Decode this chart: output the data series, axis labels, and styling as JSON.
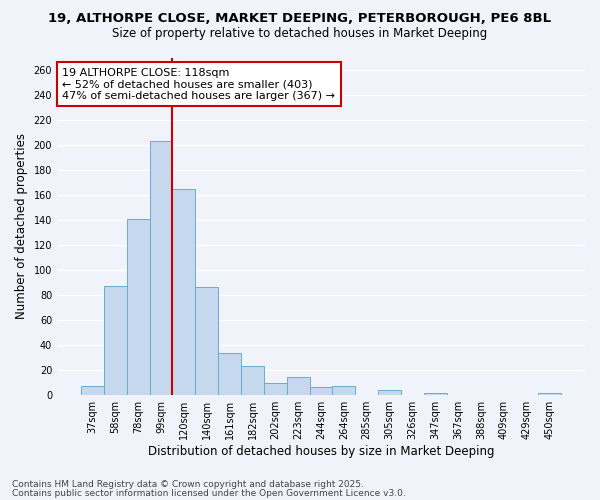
{
  "title_line1": "19, ALTHORPE CLOSE, MARKET DEEPING, PETERBOROUGH, PE6 8BL",
  "title_line2": "Size of property relative to detached houses in Market Deeping",
  "xlabel": "Distribution of detached houses by size in Market Deeping",
  "ylabel": "Number of detached properties",
  "categories": [
    "37sqm",
    "58sqm",
    "78sqm",
    "99sqm",
    "120sqm",
    "140sqm",
    "161sqm",
    "182sqm",
    "202sqm",
    "223sqm",
    "244sqm",
    "264sqm",
    "285sqm",
    "305sqm",
    "326sqm",
    "347sqm",
    "367sqm",
    "388sqm",
    "409sqm",
    "429sqm",
    "450sqm"
  ],
  "values": [
    7,
    87,
    141,
    203,
    165,
    86,
    33,
    23,
    9,
    14,
    6,
    7,
    0,
    4,
    0,
    1,
    0,
    0,
    0,
    0,
    1
  ],
  "bar_color": "#c5d8ed",
  "bar_edge_color": "#6aabd2",
  "annotation_text": "19 ALTHORPE CLOSE: 118sqm\n← 52% of detached houses are smaller (403)\n47% of semi-detached houses are larger (367) →",
  "annotation_box_color": "#ffffff",
  "annotation_box_edge": "#cc0000",
  "vline_color": "#cc0000",
  "vline_x_index": 4,
  "ylim": [
    0,
    270
  ],
  "yticks": [
    0,
    20,
    40,
    60,
    80,
    100,
    120,
    140,
    160,
    180,
    200,
    220,
    240,
    260
  ],
  "bg_color": "#f0f4fa",
  "plot_bg_color": "#f0f4fa",
  "grid_color": "#ffffff",
  "footer_line1": "Contains HM Land Registry data © Crown copyright and database right 2025.",
  "footer_line2": "Contains public sector information licensed under the Open Government Licence v3.0.",
  "title_fontsize": 9.5,
  "subtitle_fontsize": 8.5,
  "axis_label_fontsize": 8.5,
  "tick_fontsize": 7,
  "annotation_fontsize": 8,
  "footer_fontsize": 6.5
}
